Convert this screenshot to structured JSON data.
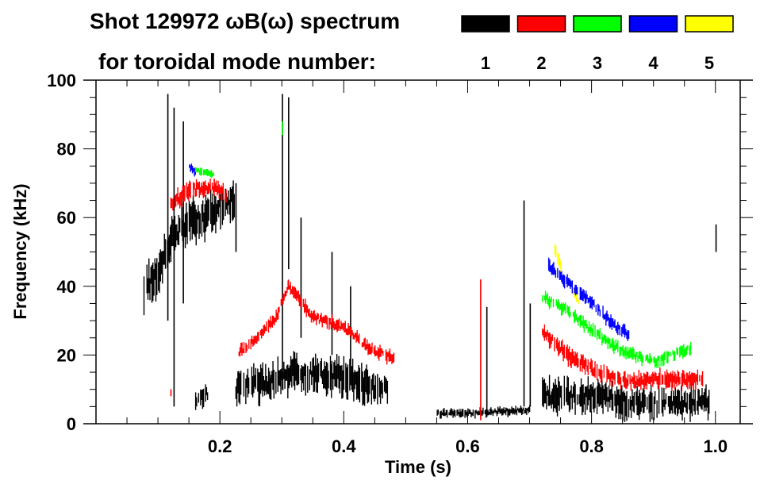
{
  "chart_data": {
    "type": "heatmap",
    "title": "Shot 129972 ωB(ω) spectrum",
    "subtitle": "for toroidal mode number:",
    "xlabel": "Time (s)",
    "ylabel": "Frequency (kHz)",
    "xlim": [
      0,
      1.04
    ],
    "ylim": [
      0,
      100
    ],
    "xticks": [
      0.2,
      0.4,
      0.6,
      0.8,
      1.0
    ],
    "xtick_labels": [
      "0.2",
      "0.4",
      "0.6",
      "0.8",
      "1.0"
    ],
    "yticks": [
      0,
      20,
      40,
      60,
      80,
      100
    ],
    "ytick_labels": [
      "0",
      "20",
      "40",
      "60",
      "80",
      "100"
    ],
    "legend": [
      {
        "label": "1",
        "color": "#000000"
      },
      {
        "label": "2",
        "color": "#ff0000"
      },
      {
        "label": "3",
        "color": "#00ff00"
      },
      {
        "label": "4",
        "color": "#0000ff"
      },
      {
        "label": "5",
        "color": "#ffff00"
      }
    ],
    "series": [
      {
        "mode": "1",
        "color": "#000000",
        "ridges": [
          {
            "points": [
              [
                0.075,
                39
              ],
              [
                0.1,
                44
              ],
              [
                0.12,
                54
              ],
              [
                0.14,
                58
              ],
              [
                0.17,
                60
              ],
              [
                0.2,
                63
              ],
              [
                0.225,
                65
              ]
            ],
            "spread": 9
          },
          {
            "points": [
              [
                0.225,
                11
              ],
              [
                0.28,
                12
              ],
              [
                0.32,
                15
              ],
              [
                0.38,
                14
              ],
              [
                0.42,
                12
              ],
              [
                0.47,
                10
              ]
            ],
            "spread": 8
          },
          {
            "points": [
              [
                0.16,
                6
              ],
              [
                0.18,
                9
              ]
            ],
            "spread": 5
          },
          {
            "points": [
              [
                0.55,
                3
              ],
              [
                0.6,
                3
              ],
              [
                0.7,
                4
              ]
            ],
            "spread": 2
          },
          {
            "points": [
              [
                0.72,
                8
              ],
              [
                0.8,
                8
              ],
              [
                0.86,
                6
              ],
              [
                0.92,
                6
              ],
              [
                0.99,
                6
              ]
            ],
            "spread": 7
          }
        ],
        "spikes": [
          [
            0.115,
            30,
            96
          ],
          [
            0.125,
            5,
            92
          ],
          [
            0.14,
            35,
            88
          ],
          [
            0.225,
            50,
            70
          ],
          [
            0.3,
            10,
            96
          ],
          [
            0.31,
            45,
            95
          ],
          [
            0.33,
            25,
            60
          ],
          [
            0.38,
            20,
            50
          ],
          [
            0.41,
            15,
            40
          ],
          [
            0.63,
            2,
            34
          ],
          [
            0.69,
            5,
            65
          ],
          [
            0.7,
            5,
            35
          ],
          [
            1.0,
            50,
            58
          ]
        ]
      },
      {
        "mode": "2",
        "color": "#ff0000",
        "ridges": [
          {
            "points": [
              [
                0.12,
                64
              ],
              [
                0.15,
                68
              ],
              [
                0.19,
                69
              ],
              [
                0.21,
                66
              ]
            ],
            "spread": 4
          },
          {
            "points": [
              [
                0.23,
                21
              ],
              [
                0.26,
                25
              ],
              [
                0.29,
                31
              ],
              [
                0.31,
                40
              ],
              [
                0.35,
                31
              ],
              [
                0.4,
                28
              ],
              [
                0.44,
                22
              ],
              [
                0.48,
                19
              ]
            ],
            "spread": 3
          },
          {
            "points": [
              [
                0.72,
                27
              ],
              [
                0.76,
                20
              ],
              [
                0.8,
                16
              ],
              [
                0.85,
                12
              ],
              [
                0.9,
                13
              ],
              [
                0.98,
                13
              ]
            ],
            "spread": 4
          }
        ],
        "spikes": [
          [
            0.12,
            8,
            10
          ],
          [
            0.62,
            1,
            42
          ]
        ]
      },
      {
        "mode": "3",
        "color": "#00ff00",
        "ridges": [
          {
            "points": [
              [
                0.16,
                74
              ],
              [
                0.19,
                72
              ]
            ],
            "spread": 2
          },
          {
            "points": [
              [
                0.72,
                37
              ],
              [
                0.76,
                33
              ],
              [
                0.8,
                27
              ],
              [
                0.85,
                21
              ],
              [
                0.9,
                18
              ],
              [
                0.96,
                22
              ]
            ],
            "spread": 3
          }
        ],
        "spikes": [
          [
            0.3,
            84,
            88
          ]
        ]
      },
      {
        "mode": "4",
        "color": "#0000ff",
        "ridges": [
          {
            "points": [
              [
                0.15,
                75
              ],
              [
                0.16,
                73
              ]
            ],
            "spread": 2
          },
          {
            "points": [
              [
                0.73,
                46
              ],
              [
                0.76,
                41
              ],
              [
                0.8,
                35
              ],
              [
                0.84,
                28
              ],
              [
                0.86,
                26
              ]
            ],
            "spread": 3
          }
        ],
        "spikes": []
      },
      {
        "mode": "5",
        "color": "#ffff00",
        "ridges": [
          {
            "points": [
              [
                0.74,
                51
              ],
              [
                0.75,
                45
              ]
            ],
            "spread": 3
          },
          {
            "points": [
              [
                0.77,
                38
              ],
              [
                0.78,
                35
              ]
            ],
            "spread": 2
          }
        ],
        "spikes": []
      }
    ]
  }
}
